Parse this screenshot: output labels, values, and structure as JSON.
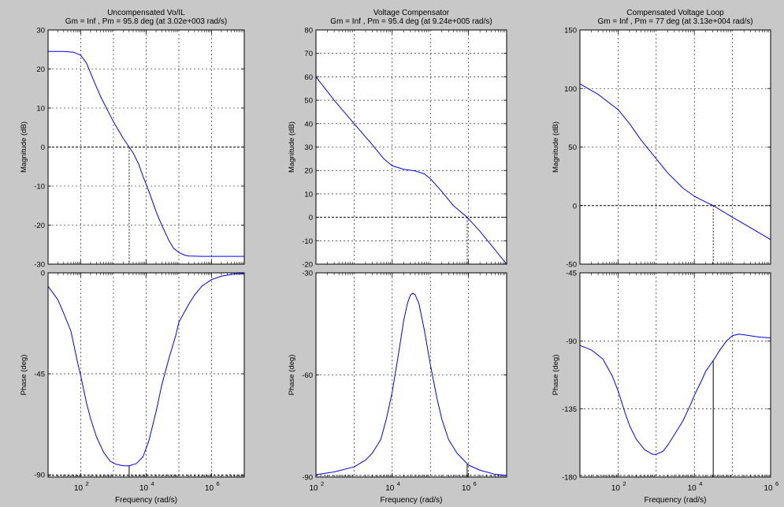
{
  "figure": {
    "background": "#c8c8c8",
    "axes_background": "#ffffff",
    "curve_color": "#0000ff",
    "marker_color": "#000000"
  },
  "chart_data": [
    {
      "type": "line",
      "title": "Uncompensated Vo/IL",
      "subtitle": "Gm = Inf ,  Pm = 95.8 deg (at 3.02e+003 rad/s)",
      "xlabel": "Frequency  (rad/s)",
      "xscale": "log",
      "xlim": [
        10,
        10000000
      ],
      "xticks": [
        {
          "v": 100,
          "base": "10",
          "exp": "2"
        },
        {
          "v": 10000,
          "base": "10",
          "exp": "4"
        },
        {
          "v": 1000000,
          "base": "10",
          "exp": "6"
        }
      ],
      "grid": true,
      "crossover": 3020,
      "magnitude": {
        "ylabel": "Magnitude (dB)",
        "ylim": [
          -30,
          30
        ],
        "yticks": [
          {
            "v": 30,
            "label": "30"
          },
          {
            "v": 20,
            "label": "20"
          },
          {
            "v": 10,
            "label": "10"
          },
          {
            "v": 0,
            "label": "0"
          },
          {
            "v": -10,
            "label": "-10"
          },
          {
            "v": -20,
            "label": "-20"
          },
          {
            "v": -30,
            "label": "-30"
          }
        ],
        "points": [
          [
            10,
            24.5
          ],
          [
            30,
            24.5
          ],
          [
            60,
            24.3
          ],
          [
            100,
            23.5
          ],
          [
            150,
            21.5
          ],
          [
            250,
            17
          ],
          [
            400,
            13
          ],
          [
            700,
            9
          ],
          [
            1000,
            6.5
          ],
          [
            1500,
            4
          ],
          [
            2000,
            2.2
          ],
          [
            3020,
            0
          ],
          [
            4000,
            -1.5
          ],
          [
            6000,
            -4.5
          ],
          [
            8000,
            -7.5
          ],
          [
            10000,
            -9.5
          ],
          [
            15000,
            -13.5
          ],
          [
            20000,
            -16.5
          ],
          [
            30000,
            -20
          ],
          [
            50000,
            -24
          ],
          [
            70000,
            -26
          ],
          [
            100000,
            -27
          ],
          [
            150000,
            -27.7
          ],
          [
            200000,
            -27.9
          ],
          [
            500000,
            -28
          ],
          [
            10000000,
            -28
          ]
        ]
      },
      "phase": {
        "ylabel": "Phase (deg)",
        "ylim": [
          -91,
          0
        ],
        "yticks": [
          {
            "v": 0,
            "label": "0"
          },
          {
            "v": -45,
            "label": "-45"
          },
          {
            "v": -90,
            "label": "-90"
          }
        ],
        "points": [
          [
            10,
            -6
          ],
          [
            20,
            -12
          ],
          [
            30,
            -18
          ],
          [
            50,
            -26
          ],
          [
            80,
            -40
          ],
          [
            100,
            -46
          ],
          [
            150,
            -58
          ],
          [
            200,
            -65
          ],
          [
            300,
            -73
          ],
          [
            500,
            -80
          ],
          [
            800,
            -84
          ],
          [
            1200,
            -85.3
          ],
          [
            2000,
            -86
          ],
          [
            3000,
            -86
          ],
          [
            5000,
            -85
          ],
          [
            8000,
            -82
          ],
          [
            12000,
            -75
          ],
          [
            20000,
            -62
          ],
          [
            30000,
            -50
          ],
          [
            50000,
            -38
          ],
          [
            80000,
            -28
          ],
          [
            100000,
            -22
          ],
          [
            200000,
            -14
          ],
          [
            300000,
            -10
          ],
          [
            500000,
            -6
          ],
          [
            1000000,
            -3
          ],
          [
            2000000,
            -1.5
          ],
          [
            5000000,
            -0.5
          ],
          [
            10000000,
            -0.3
          ]
        ]
      }
    },
    {
      "type": "line",
      "title": "Voltage Compensator",
      "subtitle": "Gm = Inf ,  Pm = 95.4 deg (at 9.24e+005 rad/s)",
      "xlabel": "Frequency  (rad/s)",
      "xscale": "log",
      "xlim": [
        100,
        10000000
      ],
      "xticks": [
        {
          "v": 100,
          "base": "10",
          "exp": "2"
        },
        {
          "v": 10000,
          "base": "10",
          "exp": "4"
        },
        {
          "v": 1000000,
          "base": "10",
          "exp": "6"
        }
      ],
      "grid": true,
      "crossover": 924000,
      "magnitude": {
        "ylabel": "Magnitude (dB)",
        "ylim": [
          -20,
          80
        ],
        "yticks": [
          {
            "v": 80,
            "label": "80"
          },
          {
            "v": 70,
            "label": "70"
          },
          {
            "v": 60,
            "label": "60"
          },
          {
            "v": 50,
            "label": "50"
          },
          {
            "v": 40,
            "label": "40"
          },
          {
            "v": 30,
            "label": "30"
          },
          {
            "v": 20,
            "label": "20"
          },
          {
            "v": 10,
            "label": "10"
          },
          {
            "v": 0,
            "label": "0"
          },
          {
            "v": -10,
            "label": "-10"
          },
          {
            "v": -20,
            "label": "-20"
          }
        ],
        "points": [
          [
            100,
            60
          ],
          [
            300,
            50
          ],
          [
            1000,
            40
          ],
          [
            3000,
            31
          ],
          [
            6000,
            25
          ],
          [
            10000,
            22
          ],
          [
            20000,
            20.5
          ],
          [
            40000,
            19.8
          ],
          [
            70000,
            18.5
          ],
          [
            100000,
            16.5
          ],
          [
            200000,
            11
          ],
          [
            400000,
            5
          ],
          [
            924000,
            0
          ],
          [
            2000000,
            -6
          ],
          [
            4000000,
            -12
          ],
          [
            10000000,
            -20
          ]
        ]
      },
      "phase": {
        "ylabel": "Phase (deg)",
        "ylim": [
          -90,
          -30
        ],
        "yticks": [
          {
            "v": -30,
            "label": "-30"
          },
          {
            "v": -60,
            "label": "-60"
          },
          {
            "v": -90,
            "label": "-90"
          }
        ],
        "points": [
          [
            100,
            -89.3
          ],
          [
            300,
            -88.5
          ],
          [
            1000,
            -87
          ],
          [
            2000,
            -85
          ],
          [
            3000,
            -83
          ],
          [
            5000,
            -79
          ],
          [
            7000,
            -73
          ],
          [
            10000,
            -65
          ],
          [
            15000,
            -53
          ],
          [
            20000,
            -44
          ],
          [
            25000,
            -39
          ],
          [
            30000,
            -36.5
          ],
          [
            35000,
            -36
          ],
          [
            40000,
            -36.5
          ],
          [
            50000,
            -39
          ],
          [
            70000,
            -47
          ],
          [
            100000,
            -57
          ],
          [
            150000,
            -67
          ],
          [
            200000,
            -73
          ],
          [
            300000,
            -79
          ],
          [
            500000,
            -83
          ],
          [
            1000000,
            -86.5
          ],
          [
            2000000,
            -88
          ],
          [
            5000000,
            -89.2
          ],
          [
            10000000,
            -89.5
          ]
        ]
      }
    },
    {
      "type": "line",
      "title": "Compensated Voltage Loop",
      "subtitle": "Gm = Inf ,  Pm = 77 deg (at 3.13e+004 rad/s)",
      "xlabel": "Frequency  (rad/s)",
      "xscale": "log",
      "xlim": [
        10,
        1000000
      ],
      "xticks": [
        {
          "v": 100,
          "base": "10",
          "exp": "2"
        },
        {
          "v": 10000,
          "base": "10",
          "exp": "4"
        },
        {
          "v": 1000000,
          "base": "10",
          "exp": "6"
        }
      ],
      "grid": true,
      "crossover": 31300,
      "magnitude": {
        "ylabel": "Magnitude (dB)",
        "ylim": [
          -50,
          150
        ],
        "yticks": [
          {
            "v": 150,
            "label": "150"
          },
          {
            "v": 100,
            "label": "100"
          },
          {
            "v": 50,
            "label": "50"
          },
          {
            "v": 0,
            "label": "0"
          },
          {
            "v": -50,
            "label": "-50"
          }
        ],
        "points": [
          [
            10,
            104
          ],
          [
            30,
            95
          ],
          [
            100,
            82
          ],
          [
            200,
            70
          ],
          [
            400,
            56
          ],
          [
            1000,
            40
          ],
          [
            2000,
            28
          ],
          [
            5000,
            15
          ],
          [
            10000,
            8
          ],
          [
            20000,
            3
          ],
          [
            31300,
            0
          ],
          [
            100000,
            -10
          ],
          [
            300000,
            -19
          ],
          [
            1000000,
            -29
          ]
        ]
      },
      "phase": {
        "ylabel": "Phase (deg)",
        "ylim": [
          -180,
          -45
        ],
        "yticks": [
          {
            "v": -45,
            "label": "-45"
          },
          {
            "v": -90,
            "label": "-90"
          },
          {
            "v": -135,
            "label": "-135"
          },
          {
            "v": -180,
            "label": "-180"
          }
        ],
        "points": [
          [
            10,
            -93
          ],
          [
            20,
            -96
          ],
          [
            40,
            -102
          ],
          [
            70,
            -113
          ],
          [
            100,
            -123
          ],
          [
            150,
            -137
          ],
          [
            200,
            -146
          ],
          [
            300,
            -155
          ],
          [
            500,
            -162
          ],
          [
            800,
            -165
          ],
          [
            1000,
            -165
          ],
          [
            1500,
            -163
          ],
          [
            2000,
            -159
          ],
          [
            3000,
            -152
          ],
          [
            5000,
            -143
          ],
          [
            8000,
            -132
          ],
          [
            10000,
            -126
          ],
          [
            15000,
            -117
          ],
          [
            20000,
            -110
          ],
          [
            31300,
            -103
          ],
          [
            50000,
            -95
          ],
          [
            70000,
            -90
          ],
          [
            100000,
            -86.5
          ],
          [
            150000,
            -85.5
          ],
          [
            200000,
            -86
          ],
          [
            500000,
            -87.5
          ],
          [
            1000000,
            -88
          ]
        ]
      }
    }
  ]
}
